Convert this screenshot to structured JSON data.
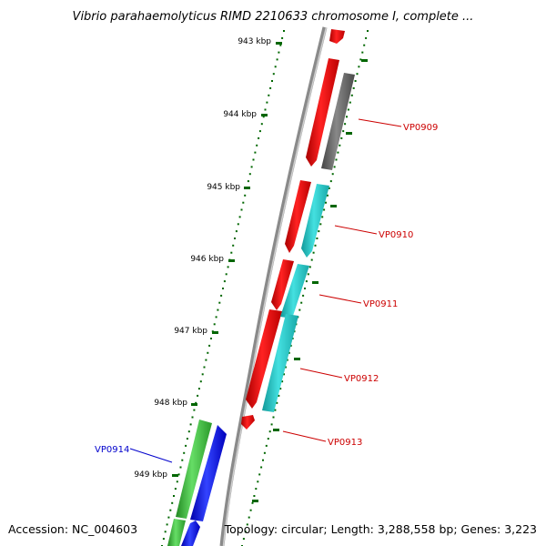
{
  "title": "Vibrio parahaemolyticus RIMD 2210633 chromosome I, complete ...",
  "ruler_ticks": [
    "943 kbp",
    "944 kbp",
    "945 kbp",
    "946 kbp",
    "947 kbp",
    "948 kbp",
    "949 kbp"
  ],
  "gene_labels": [
    {
      "name": "VP0909",
      "color": "#cc0000"
    },
    {
      "name": "VP0910",
      "color": "#cc0000"
    },
    {
      "name": "VP0911",
      "color": "#cc0000"
    },
    {
      "name": "VP0912",
      "color": "#cc0000"
    },
    {
      "name": "VP0913",
      "color": "#cc0000"
    },
    {
      "name": "VP0914",
      "color": "#0000cc"
    }
  ],
  "footer": {
    "accession": "Accession: NC_004603",
    "topology": "Topology: circular; Length: 3,288,558 bp; Genes: 3,223"
  },
  "colors": {
    "red_feature": "#ff0000",
    "cyan_feature": "#22cccc",
    "gray_feature": "#666666",
    "green_feature": "#33bb33",
    "blue_feature": "#0000ee",
    "backbone": "#888888",
    "ruler": "#006600"
  }
}
